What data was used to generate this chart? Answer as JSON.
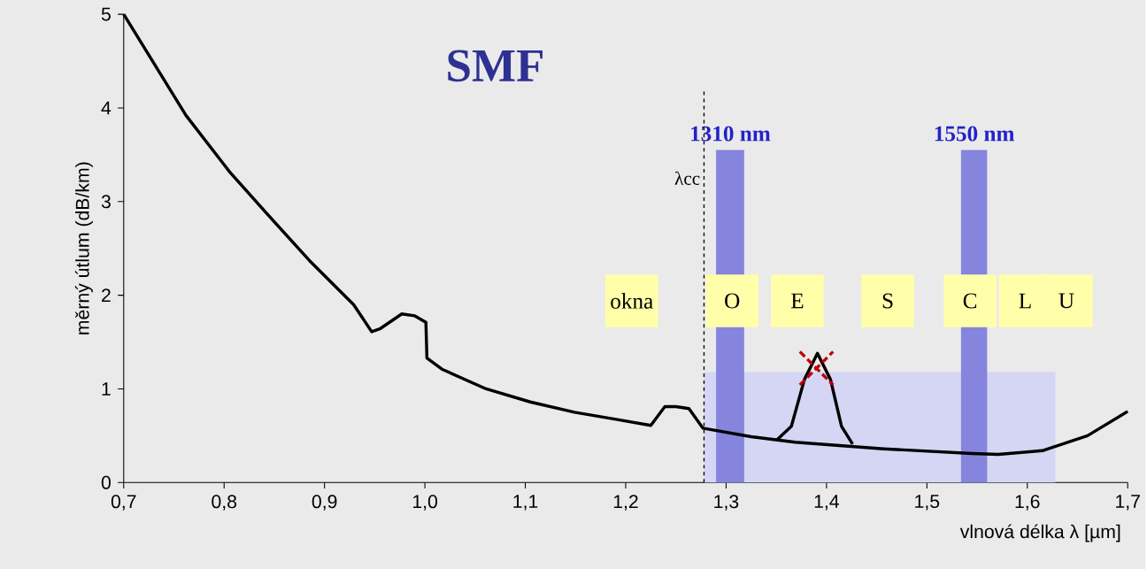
{
  "chart_data": {
    "type": "line",
    "title": "SMF",
    "xlabel": "vlnová délka λ [µm]",
    "ylabel": "měrný útlum (dB/km)",
    "xlim": [
      0.7,
      1.7
    ],
    "ylim": [
      0,
      5
    ],
    "xticks": [
      {
        "value": 0.7,
        "label": "0,7"
      },
      {
        "value": 0.8,
        "label": "0,8"
      },
      {
        "value": 0.9,
        "label": "0,9"
      },
      {
        "value": 1.0,
        "label": "1,0"
      },
      {
        "value": 1.1,
        "label": "1,1"
      },
      {
        "value": 1.2,
        "label": "1,2"
      },
      {
        "value": 1.3,
        "label": "1,3"
      },
      {
        "value": 1.4,
        "label": "1,4"
      },
      {
        "value": 1.5,
        "label": "1,5"
      },
      {
        "value": 1.6,
        "label": "1,6"
      },
      {
        "value": 1.7,
        "label": "1,7"
      }
    ],
    "yticks": [
      0,
      1,
      2,
      3,
      4,
      5
    ],
    "grid": false,
    "series": [
      {
        "type": "area",
        "color": "#d4d6f4",
        "x": [
          1.278,
          1.628
        ],
        "values": [
          1.18,
          1.18
        ]
      },
      {
        "type": "area",
        "name": "1310 nm",
        "color": "#8585dd",
        "x": [
          1.29,
          1.318
        ],
        "values": [
          3.55,
          3.55
        ]
      },
      {
        "type": "area",
        "name": "1550 nm",
        "color": "#8585dd",
        "x": [
          1.534,
          1.56
        ],
        "values": [
          3.55,
          3.55
        ]
      },
      {
        "color": "#000000",
        "x": [
          0.7,
          0.762,
          0.806,
          0.841,
          0.885,
          0.929,
          0.947,
          0.955,
          0.977,
          0.99,
          1.001,
          1.002,
          1.017,
          1.061,
          1.105,
          1.149,
          1.193,
          1.225,
          1.239,
          1.25,
          1.263,
          1.277,
          1.325,
          1.369,
          1.457,
          1.545,
          1.571,
          1.615,
          1.66,
          1.7
        ],
        "values": [
          5.0,
          3.92,
          3.31,
          2.89,
          2.37,
          1.9,
          1.61,
          1.64,
          1.8,
          1.78,
          1.71,
          1.33,
          1.21,
          1.0,
          0.86,
          0.75,
          0.67,
          0.61,
          0.81,
          0.81,
          0.79,
          0.58,
          0.49,
          0.43,
          0.36,
          0.31,
          0.3,
          0.34,
          0.5,
          0.76
        ]
      },
      {
        "type": "line",
        "color": "#000000",
        "x": [
          1.35,
          1.365,
          1.378,
          1.391,
          1.404,
          1.415,
          1.426
        ],
        "values": [
          0.45,
          0.6,
          1.1,
          1.38,
          1.1,
          0.6,
          0.41
        ]
      },
      {
        "type": "scatter",
        "marker": "cross",
        "color": "#c00000",
        "x": [
          1.39
        ],
        "values": [
          1.22
        ]
      }
    ],
    "ref_lines": [
      {
        "axis": "x",
        "value": 1.278,
        "label": "λcc",
        "line_style": "dashed",
        "color": "#000000"
      }
    ],
    "annotations": [
      "okna",
      "O",
      "E",
      "S",
      "C",
      "L",
      "U"
    ]
  }
}
